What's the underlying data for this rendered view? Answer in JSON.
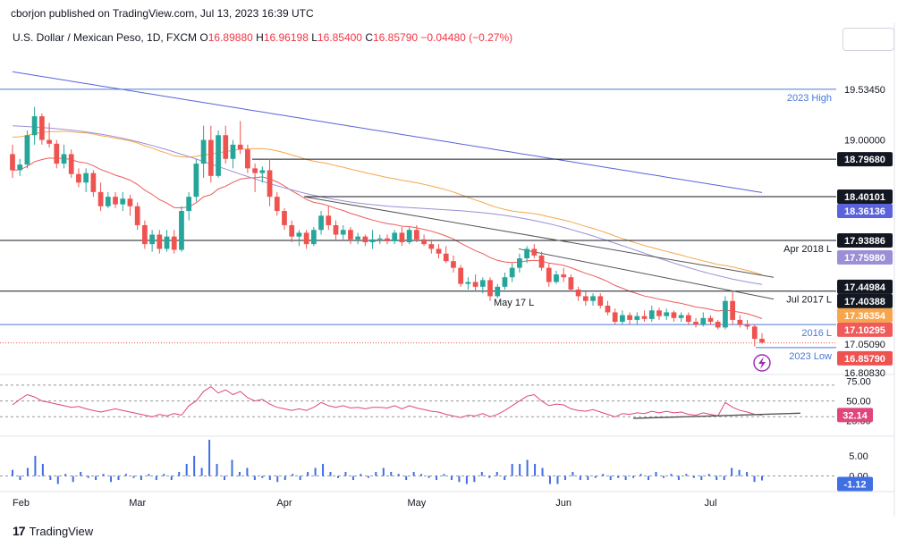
{
  "header": {
    "published_by": "cborjon published on TradingView.com, Jul 13, 2023 16:39 UTC"
  },
  "legend": {
    "symbol": "U.S. Dollar / Mexican Peso, 1D, FXCM",
    "open_label": "O",
    "open": "16.89880",
    "high_label": "H",
    "high": "16.96198",
    "low_label": "L",
    "low": "16.85400",
    "close_label": "C",
    "close": "16.85790",
    "change": "−0.04480 (−0.27%)"
  },
  "footer": {
    "brand": "TradingView"
  },
  "colors": {
    "up": "#26a69a",
    "down": "#ef5350",
    "ema_red": "#f05a5a",
    "ema_orange": "#f7a64d",
    "ma_purple": "#9c8fd6",
    "ma_blue": "#5b63db",
    "rsi": "#e0457b",
    "volume": "#3f6fe3",
    "level": "#4a78d6"
  },
  "chart_data": [
    {
      "type": "candlestick",
      "title": "U.S. Dollar / Mexican Peso, 1D, FXCM",
      "x_labels": [
        "Feb",
        "Mar",
        "Apr",
        "May",
        "Jun",
        "Jul"
      ],
      "ylim": [
        16.75,
        20.1
      ],
      "price_axis_labels": [
        "19.53450",
        "19.00000",
        "18.79680",
        "18.40101",
        "18.36136",
        "17.93886",
        "17.75980",
        "17.44984",
        "17.40388",
        "17.36354",
        "17.10295",
        "17.05090",
        "16.85790",
        "16.80830"
      ],
      "candles": [
        {
          "o": 18.85,
          "h": 18.95,
          "l": 18.6,
          "c": 18.68
        },
        {
          "o": 18.68,
          "h": 18.8,
          "l": 18.62,
          "c": 18.74
        },
        {
          "o": 18.74,
          "h": 19.1,
          "l": 18.7,
          "c": 19.05
        },
        {
          "o": 19.05,
          "h": 19.35,
          "l": 18.95,
          "c": 19.25
        },
        {
          "o": 19.25,
          "h": 19.28,
          "l": 18.95,
          "c": 19.0
        },
        {
          "o": 19.0,
          "h": 19.18,
          "l": 18.92,
          "c": 18.96
        },
        {
          "o": 18.96,
          "h": 19.0,
          "l": 18.7,
          "c": 18.75
        },
        {
          "o": 18.75,
          "h": 18.95,
          "l": 18.7,
          "c": 18.85
        },
        {
          "o": 18.85,
          "h": 18.9,
          "l": 18.6,
          "c": 18.64
        },
        {
          "o": 18.64,
          "h": 18.7,
          "l": 18.5,
          "c": 18.55
        },
        {
          "o": 18.55,
          "h": 18.7,
          "l": 18.45,
          "c": 18.65
        },
        {
          "o": 18.65,
          "h": 18.68,
          "l": 18.4,
          "c": 18.45
        },
        {
          "o": 18.45,
          "h": 18.55,
          "l": 18.25,
          "c": 18.3
        },
        {
          "o": 18.3,
          "h": 18.45,
          "l": 18.28,
          "c": 18.4
        },
        {
          "o": 18.4,
          "h": 18.45,
          "l": 18.28,
          "c": 18.32
        },
        {
          "o": 18.32,
          "h": 18.45,
          "l": 18.25,
          "c": 18.38
        },
        {
          "o": 18.38,
          "h": 18.42,
          "l": 18.2,
          "c": 18.3
        },
        {
          "o": 18.3,
          "h": 18.34,
          "l": 18.05,
          "c": 18.1
        },
        {
          "o": 18.1,
          "h": 18.15,
          "l": 17.85,
          "c": 17.9
        },
        {
          "o": 17.9,
          "h": 18.05,
          "l": 17.82,
          "c": 18.0
        },
        {
          "o": 18.0,
          "h": 18.05,
          "l": 17.8,
          "c": 17.85
        },
        {
          "o": 17.85,
          "h": 18.05,
          "l": 17.82,
          "c": 17.98
        },
        {
          "o": 17.98,
          "h": 18.05,
          "l": 17.8,
          "c": 17.84
        },
        {
          "o": 17.84,
          "h": 18.3,
          "l": 17.82,
          "c": 18.25
        },
        {
          "o": 18.25,
          "h": 18.45,
          "l": 18.15,
          "c": 18.4
        },
        {
          "o": 18.4,
          "h": 18.8,
          "l": 18.35,
          "c": 18.75
        },
        {
          "o": 18.75,
          "h": 19.15,
          "l": 18.6,
          "c": 19.0
        },
        {
          "o": 19.0,
          "h": 19.15,
          "l": 18.55,
          "c": 18.62
        },
        {
          "o": 18.62,
          "h": 19.1,
          "l": 18.6,
          "c": 19.05
        },
        {
          "o": 19.05,
          "h": 19.15,
          "l": 18.75,
          "c": 18.8
        },
        {
          "o": 18.8,
          "h": 19.0,
          "l": 18.7,
          "c": 18.95
        },
        {
          "o": 18.95,
          "h": 19.2,
          "l": 18.85,
          "c": 18.9
        },
        {
          "o": 18.9,
          "h": 18.95,
          "l": 18.65,
          "c": 18.7
        },
        {
          "o": 18.7,
          "h": 18.75,
          "l": 18.45,
          "c": 18.65
        },
        {
          "o": 18.65,
          "h": 18.72,
          "l": 18.55,
          "c": 18.68
        },
        {
          "o": 18.68,
          "h": 18.8,
          "l": 18.3,
          "c": 18.4
        },
        {
          "o": 18.4,
          "h": 18.45,
          "l": 18.2,
          "c": 18.25
        },
        {
          "o": 18.25,
          "h": 18.28,
          "l": 18.05,
          "c": 18.1
        },
        {
          "o": 18.1,
          "h": 18.15,
          "l": 17.92,
          "c": 17.98
        },
        {
          "o": 17.98,
          "h": 18.05,
          "l": 17.88,
          "c": 18.02
        },
        {
          "o": 18.02,
          "h": 18.05,
          "l": 17.85,
          "c": 17.9
        },
        {
          "o": 17.9,
          "h": 18.08,
          "l": 17.88,
          "c": 18.05
        },
        {
          "o": 18.05,
          "h": 18.25,
          "l": 18.0,
          "c": 18.2
        },
        {
          "o": 18.2,
          "h": 18.3,
          "l": 18.05,
          "c": 18.1
        },
        {
          "o": 18.1,
          "h": 18.15,
          "l": 17.95,
          "c": 18.0
        },
        {
          "o": 18.0,
          "h": 18.1,
          "l": 17.95,
          "c": 18.05
        },
        {
          "o": 18.05,
          "h": 18.08,
          "l": 17.9,
          "c": 17.95
        },
        {
          "o": 17.95,
          "h": 18.02,
          "l": 17.9,
          "c": 17.98
        },
        {
          "o": 17.98,
          "h": 18.0,
          "l": 17.88,
          "c": 17.92
        },
        {
          "o": 17.92,
          "h": 18.05,
          "l": 17.85,
          "c": 17.95
        },
        {
          "o": 17.95,
          "h": 18.0,
          "l": 17.9,
          "c": 17.96
        },
        {
          "o": 17.96,
          "h": 18.0,
          "l": 17.9,
          "c": 17.93
        },
        {
          "o": 17.93,
          "h": 18.05,
          "l": 17.9,
          "c": 18.02
        },
        {
          "o": 18.02,
          "h": 18.08,
          "l": 17.88,
          "c": 17.92
        },
        {
          "o": 17.92,
          "h": 18.08,
          "l": 17.9,
          "c": 18.05
        },
        {
          "o": 18.05,
          "h": 18.1,
          "l": 17.92,
          "c": 17.95
        },
        {
          "o": 17.95,
          "h": 18.0,
          "l": 17.88,
          "c": 17.9
        },
        {
          "o": 17.9,
          "h": 17.95,
          "l": 17.8,
          "c": 17.85
        },
        {
          "o": 17.85,
          "h": 17.9,
          "l": 17.75,
          "c": 17.8
        },
        {
          "o": 17.8,
          "h": 17.88,
          "l": 17.7,
          "c": 17.72
        },
        {
          "o": 17.72,
          "h": 17.78,
          "l": 17.6,
          "c": 17.65
        },
        {
          "o": 17.65,
          "h": 17.68,
          "l": 17.45,
          "c": 17.48
        },
        {
          "o": 17.48,
          "h": 17.55,
          "l": 17.42,
          "c": 17.5
        },
        {
          "o": 17.5,
          "h": 17.58,
          "l": 17.4,
          "c": 17.45
        },
        {
          "o": 17.45,
          "h": 17.55,
          "l": 17.38,
          "c": 17.52
        },
        {
          "o": 17.52,
          "h": 17.55,
          "l": 17.3,
          "c": 17.35
        },
        {
          "o": 17.35,
          "h": 17.48,
          "l": 17.33,
          "c": 17.45
        },
        {
          "o": 17.45,
          "h": 17.6,
          "l": 17.42,
          "c": 17.55
        },
        {
          "o": 17.55,
          "h": 17.7,
          "l": 17.5,
          "c": 17.65
        },
        {
          "o": 17.65,
          "h": 17.8,
          "l": 17.6,
          "c": 17.75
        },
        {
          "o": 17.75,
          "h": 17.88,
          "l": 17.7,
          "c": 17.85
        },
        {
          "o": 17.85,
          "h": 17.9,
          "l": 17.75,
          "c": 17.78
        },
        {
          "o": 17.78,
          "h": 17.82,
          "l": 17.62,
          "c": 17.65
        },
        {
          "o": 17.65,
          "h": 17.7,
          "l": 17.45,
          "c": 17.5
        },
        {
          "o": 17.5,
          "h": 17.62,
          "l": 17.48,
          "c": 17.58
        },
        {
          "o": 17.58,
          "h": 17.65,
          "l": 17.5,
          "c": 17.55
        },
        {
          "o": 17.55,
          "h": 17.58,
          "l": 17.4,
          "c": 17.42
        },
        {
          "o": 17.42,
          "h": 17.45,
          "l": 17.3,
          "c": 17.35
        },
        {
          "o": 17.35,
          "h": 17.4,
          "l": 17.25,
          "c": 17.3
        },
        {
          "o": 17.3,
          "h": 17.38,
          "l": 17.25,
          "c": 17.35
        },
        {
          "o": 17.35,
          "h": 17.38,
          "l": 17.22,
          "c": 17.25
        },
        {
          "o": 17.25,
          "h": 17.3,
          "l": 17.15,
          "c": 17.18
        },
        {
          "o": 17.18,
          "h": 17.22,
          "l": 17.05,
          "c": 17.08
        },
        {
          "o": 17.08,
          "h": 17.2,
          "l": 17.05,
          "c": 17.15
        },
        {
          "o": 17.15,
          "h": 17.18,
          "l": 17.05,
          "c": 17.1
        },
        {
          "o": 17.1,
          "h": 17.18,
          "l": 17.05,
          "c": 17.14
        },
        {
          "o": 17.14,
          "h": 17.2,
          "l": 17.08,
          "c": 17.11
        },
        {
          "o": 17.11,
          "h": 17.25,
          "l": 17.08,
          "c": 17.2
        },
        {
          "o": 17.2,
          "h": 17.23,
          "l": 17.1,
          "c": 17.14
        },
        {
          "o": 17.14,
          "h": 17.22,
          "l": 17.1,
          "c": 17.18
        },
        {
          "o": 17.18,
          "h": 17.2,
          "l": 17.08,
          "c": 17.12
        },
        {
          "o": 17.12,
          "h": 17.18,
          "l": 17.08,
          "c": 17.15
        },
        {
          "o": 17.15,
          "h": 17.18,
          "l": 17.05,
          "c": 17.08
        },
        {
          "o": 17.08,
          "h": 17.12,
          "l": 17.02,
          "c": 17.05
        },
        {
          "o": 17.05,
          "h": 17.18,
          "l": 17.03,
          "c": 17.12
        },
        {
          "o": 17.12,
          "h": 17.15,
          "l": 17.05,
          "c": 17.08
        },
        {
          "o": 17.08,
          "h": 17.1,
          "l": 17.0,
          "c": 17.02
        },
        {
          "o": 17.02,
          "h": 17.35,
          "l": 17.0,
          "c": 17.3
        },
        {
          "o": 17.3,
          "h": 17.4,
          "l": 17.05,
          "c": 17.1
        },
        {
          "o": 17.1,
          "h": 17.15,
          "l": 17.02,
          "c": 17.05
        },
        {
          "o": 17.05,
          "h": 17.1,
          "l": 17.0,
          "c": 17.03
        },
        {
          "o": 17.03,
          "h": 17.05,
          "l": 16.82,
          "c": 16.9
        },
        {
          "o": 16.9,
          "h": 16.96,
          "l": 16.85,
          "c": 16.86
        }
      ],
      "horizontal_levels": [
        {
          "value": 19.5345,
          "label": "2023 High",
          "color": "level"
        },
        {
          "value": 18.7968,
          "label": "",
          "color": "dark"
        },
        {
          "value": 18.40101,
          "label": "",
          "color": "dark"
        },
        {
          "value": 17.93886,
          "label": "Apr 2018 L",
          "color": "dark"
        },
        {
          "value": 17.40388,
          "label": "Jul 2017 L",
          "color": "dark"
        },
        {
          "value": 17.0509,
          "label": "2016 L",
          "color": "level"
        },
        {
          "value": 16.8083,
          "label": "2023 Low",
          "color": "level"
        }
      ],
      "annotations": [
        "May 17 L"
      ],
      "last_price": 16.8579
    },
    {
      "type": "line",
      "title": "RSI",
      "ylim": [
        10,
        80
      ],
      "guides": [
        70,
        50,
        30
      ],
      "axis_labels": [
        "75.00",
        "50.00",
        "25.00"
      ],
      "current": "32.14",
      "values": [
        45,
        52,
        58,
        55,
        50,
        48,
        46,
        44,
        42,
        43,
        40,
        38,
        36,
        38,
        40,
        38,
        36,
        34,
        32,
        30,
        33,
        31,
        34,
        32,
        44,
        50,
        62,
        68,
        60,
        64,
        58,
        62,
        54,
        50,
        52,
        46,
        42,
        40,
        38,
        40,
        38,
        42,
        48,
        44,
        42,
        44,
        41,
        42,
        40,
        42,
        42,
        41,
        44,
        40,
        44,
        41,
        39,
        37,
        36,
        33,
        31,
        29,
        32,
        31,
        34,
        30,
        33,
        38,
        44,
        50,
        56,
        58,
        50,
        44,
        46,
        45,
        40,
        38,
        37,
        39,
        36,
        33,
        30,
        34,
        33,
        35,
        34,
        37,
        35,
        37,
        35,
        36,
        33,
        32,
        35,
        33,
        31,
        48,
        42,
        38,
        36,
        33,
        32
      ]
    },
    {
      "type": "bar",
      "title": "Momentum",
      "ylim": [
        -3,
        9
      ],
      "axis_labels": [
        "5.00",
        "0.00"
      ],
      "current": "-1.12",
      "values": [
        1.5,
        -1,
        2,
        5,
        3,
        -1,
        -2,
        0.5,
        -1.5,
        1,
        -0.5,
        -1,
        0.5,
        -1.5,
        -1,
        0.5,
        -0.5,
        -1,
        0.5,
        -1,
        0.5,
        -1,
        1,
        3,
        5,
        2,
        9,
        3,
        -1,
        4,
        1,
        2,
        -1,
        -0.5,
        -1,
        -1.5,
        -1,
        0.5,
        -1,
        1,
        2,
        3,
        1,
        -0.5,
        1,
        -1,
        0.5,
        -0.5,
        1,
        2,
        1,
        0.5,
        -1,
        1,
        0.5,
        -0.5,
        -1,
        0.5,
        -1,
        -1.5,
        -2,
        -1.5,
        1,
        -0.5,
        1,
        -1,
        3,
        3,
        4,
        3,
        2,
        -2,
        -2,
        -1,
        1,
        -1,
        -1,
        -0.5,
        0.5,
        -1,
        -0.5,
        -1,
        -0.5,
        0.5,
        -1,
        1,
        -0.5,
        0.5,
        -1,
        0.5,
        -0.5,
        -1,
        0.5,
        -1,
        -1,
        2,
        1.5,
        1,
        -1.5,
        -1.12
      ]
    }
  ]
}
